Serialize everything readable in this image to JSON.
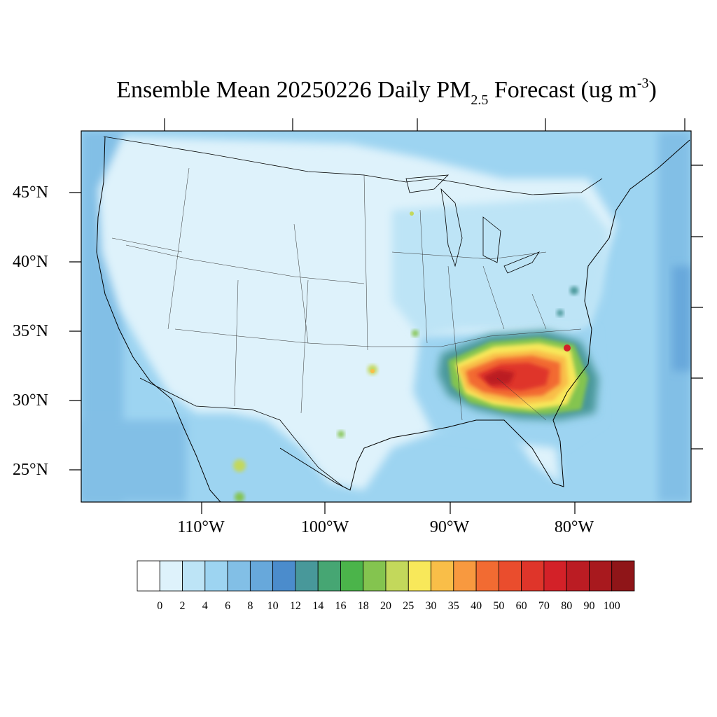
{
  "title": {
    "prefix": "Ensemble Mean 20250226 Daily PM",
    "subscript": "2.5",
    "middle": " Forecast (ug m",
    "superscript": "-3",
    "suffix": ")"
  },
  "map": {
    "region": "CONUS",
    "projection": "lambert-conformal",
    "lat_labels": [
      "45°N",
      "40°N",
      "35°N",
      "30°N",
      "25°N"
    ],
    "lon_labels": [
      "110°W",
      "100°W",
      "90°W",
      "80°W"
    ],
    "hotspot": "southeastern-us"
  },
  "colorbar": {
    "labels": [
      "0",
      "2",
      "4",
      "6",
      "8",
      "10",
      "12",
      "14",
      "16",
      "18",
      "20",
      "25",
      "30",
      "35",
      "40",
      "50",
      "60",
      "70",
      "80",
      "90",
      "100"
    ],
    "colors": [
      "#ffffff",
      "#def2fb",
      "#bde4f6",
      "#9dd4f1",
      "#82bfe6",
      "#67a8db",
      "#4b8ccc",
      "#48989a",
      "#46a673",
      "#4bb44a",
      "#84c44f",
      "#c3d85b",
      "#f8e85a",
      "#f9be48",
      "#f8993f",
      "#f26b32",
      "#ea4d2d",
      "#df352a",
      "#d32128",
      "#bb1c23",
      "#a8191e",
      "#8f1518"
    ]
  }
}
